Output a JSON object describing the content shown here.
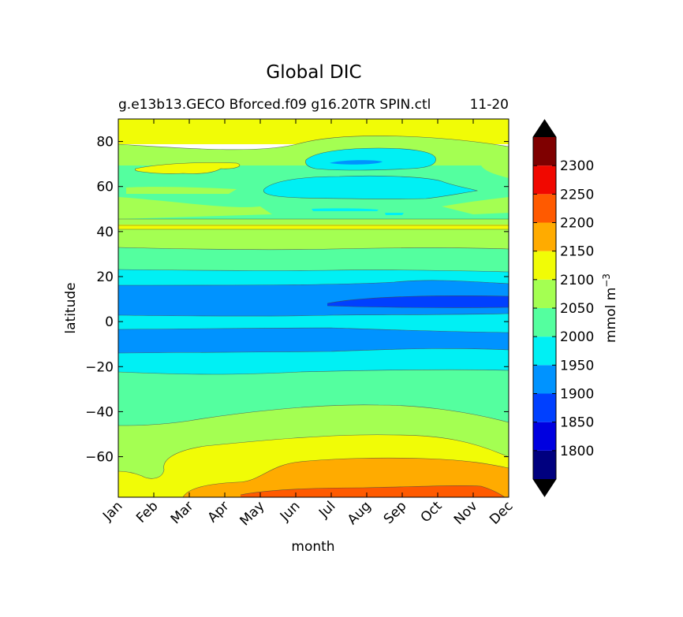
{
  "chart_data": {
    "type": "filled_contour",
    "title": "Global DIC",
    "subtitle_left": "g.e13b13.GECO Bforced.f09 g16.20TR SPIN.ctl",
    "subtitle_right": "11-20",
    "xlabel": "month",
    "ylabel": "latitude",
    "x_ticks": [
      "Jan",
      "Feb",
      "Mar",
      "Apr",
      "May",
      "Jun",
      "Jul",
      "Aug",
      "Sep",
      "Oct",
      "Nov",
      "Dec"
    ],
    "y_range": [
      -78,
      90
    ],
    "y_ticks": [
      80,
      60,
      40,
      20,
      0,
      -20,
      -40,
      -60
    ],
    "y_tick_labels": [
      "80",
      "60",
      "40",
      "20",
      "0",
      "−20",
      "−40",
      "−60"
    ],
    "colorbar": {
      "label": "mmol m",
      "label_exp": "−3",
      "extend": "both",
      "levels": [
        1750,
        1800,
        1850,
        1900,
        1950,
        2000,
        2050,
        2100,
        2150,
        2200,
        2250,
        2300,
        2350
      ],
      "tick_values": [
        1800,
        1850,
        1900,
        1950,
        2000,
        2050,
        2100,
        2150,
        2200,
        2250,
        2300
      ],
      "tick_labels": [
        "1800",
        "1850",
        "1900",
        "1950",
        "2000",
        "2050",
        "2100",
        "2150",
        "2200",
        "2250",
        "2300"
      ],
      "colors": [
        "#00007f",
        "#0000e0",
        "#0040ff",
        "#0093ff",
        "#00f0f4",
        "#54ff9f",
        "#a4ff52",
        "#f1fc06",
        "#ffab00",
        "#ff5a00",
        "#f10800",
        "#7f0000"
      ],
      "under_color": "#000000",
      "over_color": "#000000"
    },
    "zonal_profile_approx": [
      {
        "lat_range": [
          82,
          90
        ],
        "value_band": "2100-2150"
      },
      {
        "lat_range": [
          75,
          82
        ],
        "value_band": "2050-2100"
      },
      {
        "lat_range": [
          45,
          75
        ],
        "value_band": "2000-2050"
      },
      {
        "lat_range": [
          40,
          45
        ],
        "value_band": "2100-2150"
      },
      {
        "lat_range": [
          32,
          40
        ],
        "value_band": "2050-2100"
      },
      {
        "lat_range": [
          22,
          32
        ],
        "value_band": "2000-2050"
      },
      {
        "lat_range": [
          15,
          22
        ],
        "value_band": "1950-2000"
      },
      {
        "lat_range": [
          2,
          15
        ],
        "value_band": "1900-1950"
      },
      {
        "lat_range": [
          -4,
          2
        ],
        "value_band": "1950-2000"
      },
      {
        "lat_range": [
          -14,
          -4
        ],
        "value_band": "1900-1950"
      },
      {
        "lat_range": [
          -23,
          -14
        ],
        "value_band": "1950-2000"
      },
      {
        "lat_range": [
          -47,
          -23
        ],
        "value_band": "2000-2050"
      },
      {
        "lat_range": [
          -62,
          -47
        ],
        "value_band": "2050-2100"
      },
      {
        "lat_range": [
          -72,
          -62
        ],
        "value_band": "2100-2150"
      },
      {
        "lat_range": [
          -78,
          -72
        ],
        "value_band": "2150-2200"
      }
    ]
  }
}
